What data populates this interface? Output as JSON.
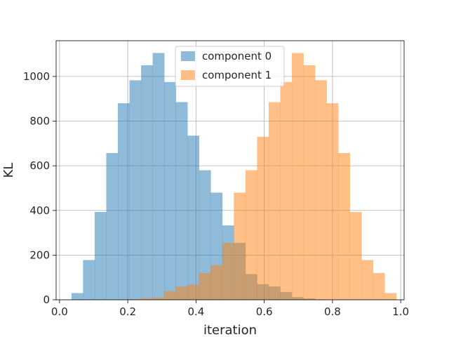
{
  "chart_data": {
    "type": "bar",
    "subtype": "histogram-overlay",
    "title": "",
    "xlabel": "iteration",
    "ylabel": "KL",
    "xlim": [
      -0.01,
      1.01
    ],
    "ylim": [
      0,
      1160
    ],
    "xticks": [
      0.0,
      0.2,
      0.4,
      0.6,
      0.8,
      1.0
    ],
    "xtick_labels": [
      "0.0",
      "0.2",
      "0.4",
      "0.6",
      "0.8",
      "1.0"
    ],
    "yticks": [
      0,
      200,
      400,
      600,
      800,
      1000
    ],
    "ytick_labels": [
      "0",
      "200",
      "400",
      "600",
      "800",
      "1000"
    ],
    "grid": true,
    "legend_position": "top-center",
    "bin_edges": [
      0.035,
      0.069,
      0.103,
      0.137,
      0.171,
      0.205,
      0.239,
      0.273,
      0.307,
      0.341,
      0.375,
      0.409,
      0.443,
      0.477,
      0.511,
      0.545,
      0.579,
      0.613,
      0.647,
      0.681,
      0.715,
      0.749,
      0.783,
      0.817,
      0.851,
      0.885,
      0.919,
      0.953,
      0.987
    ],
    "series": [
      {
        "name": "component 0",
        "color": "#1f77b4",
        "alpha": 0.5,
        "bins": [
          {
            "x0": 0.035,
            "x1": 0.069,
            "count": 30
          },
          {
            "x0": 0.069,
            "x1": 0.103,
            "count": 178
          },
          {
            "x0": 0.103,
            "x1": 0.137,
            "count": 393
          },
          {
            "x0": 0.137,
            "x1": 0.171,
            "count": 657
          },
          {
            "x0": 0.171,
            "x1": 0.205,
            "count": 880
          },
          {
            "x0": 0.205,
            "x1": 0.239,
            "count": 983
          },
          {
            "x0": 0.239,
            "x1": 0.273,
            "count": 1050
          },
          {
            "x0": 0.273,
            "x1": 0.307,
            "count": 1105
          },
          {
            "x0": 0.307,
            "x1": 0.341,
            "count": 975
          },
          {
            "x0": 0.341,
            "x1": 0.375,
            "count": 885
          },
          {
            "x0": 0.375,
            "x1": 0.409,
            "count": 735
          },
          {
            "x0": 0.409,
            "x1": 0.443,
            "count": 580
          },
          {
            "x0": 0.443,
            "x1": 0.477,
            "count": 480
          },
          {
            "x0": 0.477,
            "x1": 0.511,
            "count": 333
          },
          {
            "x0": 0.511,
            "x1": 0.545,
            "count": 255
          },
          {
            "x0": 0.545,
            "x1": 0.579,
            "count": 115
          },
          {
            "x0": 0.579,
            "x1": 0.613,
            "count": 70
          },
          {
            "x0": 0.613,
            "x1": 0.647,
            "count": 60
          },
          {
            "x0": 0.647,
            "x1": 0.681,
            "count": 35
          },
          {
            "x0": 0.681,
            "x1": 0.715,
            "count": 12
          },
          {
            "x0": 0.715,
            "x1": 0.749,
            "count": 6
          },
          {
            "x0": 0.749,
            "x1": 0.783,
            "count": 2
          }
        ]
      },
      {
        "name": "component 1",
        "color": "#ff7f0e",
        "alpha": 0.5,
        "bins": [
          {
            "x0": 0.205,
            "x1": 0.239,
            "count": 3
          },
          {
            "x0": 0.239,
            "x1": 0.273,
            "count": 7
          },
          {
            "x0": 0.273,
            "x1": 0.307,
            "count": 10
          },
          {
            "x0": 0.307,
            "x1": 0.341,
            "count": 38
          },
          {
            "x0": 0.341,
            "x1": 0.375,
            "count": 60
          },
          {
            "x0": 0.375,
            "x1": 0.409,
            "count": 68
          },
          {
            "x0": 0.409,
            "x1": 0.443,
            "count": 120
          },
          {
            "x0": 0.443,
            "x1": 0.477,
            "count": 155
          },
          {
            "x0": 0.477,
            "x1": 0.511,
            "count": 255
          },
          {
            "x0": 0.511,
            "x1": 0.545,
            "count": 480
          },
          {
            "x0": 0.545,
            "x1": 0.579,
            "count": 580
          },
          {
            "x0": 0.579,
            "x1": 0.613,
            "count": 730
          },
          {
            "x0": 0.613,
            "x1": 0.647,
            "count": 885
          },
          {
            "x0": 0.647,
            "x1": 0.681,
            "count": 975
          },
          {
            "x0": 0.681,
            "x1": 0.715,
            "count": 1105
          },
          {
            "x0": 0.715,
            "x1": 0.749,
            "count": 1050
          },
          {
            "x0": 0.749,
            "x1": 0.783,
            "count": 983
          },
          {
            "x0": 0.783,
            "x1": 0.817,
            "count": 880
          },
          {
            "x0": 0.817,
            "x1": 0.851,
            "count": 657
          },
          {
            "x0": 0.851,
            "x1": 0.885,
            "count": 393
          },
          {
            "x0": 0.885,
            "x1": 0.919,
            "count": 178
          },
          {
            "x0": 0.919,
            "x1": 0.953,
            "count": 120
          },
          {
            "x0": 0.953,
            "x1": 0.987,
            "count": 30
          }
        ]
      }
    ]
  }
}
